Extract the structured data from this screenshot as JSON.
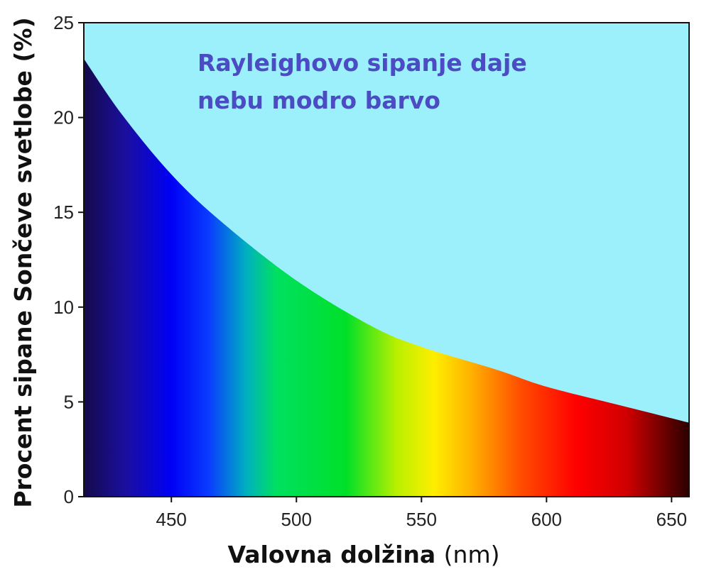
{
  "chart_data": {
    "type": "area",
    "title": "",
    "xlabel": "Valovna dolžina",
    "xlabel_unit": "(nm)",
    "ylabel": "Procent sipane Sončeve svetlobe (%)",
    "xlim": [
      415,
      657
    ],
    "ylim": [
      0,
      25
    ],
    "x_ticks": [
      450,
      500,
      550,
      600,
      650
    ],
    "y_ticks": [
      0,
      5,
      10,
      15,
      20,
      25
    ],
    "grid": false,
    "series": [
      {
        "x": [
          415,
          430,
          450,
          470,
          500,
          530,
          550,
          580,
          600,
          630,
          657
        ],
        "y": [
          23.1,
          20.2,
          17.0,
          14.5,
          11.4,
          9.0,
          7.9,
          6.7,
          5.8,
          4.8,
          3.9
        ]
      }
    ],
    "annotation": {
      "lines": [
        "Rayleighovo sipanje daje",
        "nebu modro barvo"
      ]
    },
    "colors": {
      "sky": "#9cf0fb",
      "annotation": "#4b4bc4",
      "spectrum": [
        {
          "x": 415,
          "color": "#140a4a"
        },
        {
          "x": 432,
          "color": "#1a0fa0"
        },
        {
          "x": 450,
          "color": "#0000f5"
        },
        {
          "x": 465,
          "color": "#0a3cff"
        },
        {
          "x": 480,
          "color": "#00b0c0"
        },
        {
          "x": 492,
          "color": "#00e060"
        },
        {
          "x": 520,
          "color": "#00e028"
        },
        {
          "x": 540,
          "color": "#b8f000"
        },
        {
          "x": 555,
          "color": "#ffee00"
        },
        {
          "x": 570,
          "color": "#ffb000"
        },
        {
          "x": 590,
          "color": "#ff4c00"
        },
        {
          "x": 612,
          "color": "#ff0000"
        },
        {
          "x": 632,
          "color": "#d00000"
        },
        {
          "x": 657,
          "color": "#2a0000"
        }
      ]
    }
  }
}
